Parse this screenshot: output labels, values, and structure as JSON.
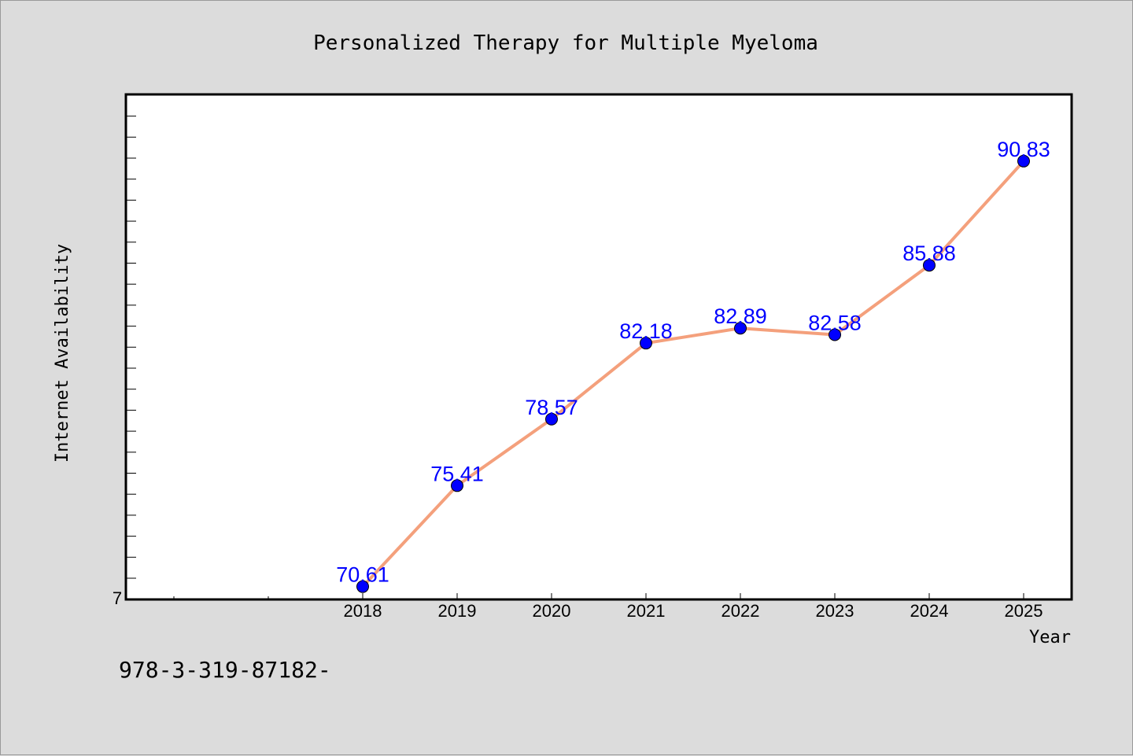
{
  "chart_data": {
    "type": "line",
    "title": "Personalized Therapy for Multiple Myeloma",
    "xlabel": "Year",
    "ylabel": "Internet Availability",
    "x": [
      "2018",
      "2019",
      "2020",
      "2021",
      "2022",
      "2023",
      "2024",
      "2025"
    ],
    "series": [
      {
        "values": [
          70.61,
          75.41,
          78.57,
          82.18,
          82.89,
          82.58,
          85.88,
          90.83
        ]
      }
    ],
    "data_labels": [
      "70.61",
      "75.41",
      "78.57",
      "82.18",
      "82.89",
      "82.58",
      "85.88",
      "90.83"
    ],
    "y_tick_label": "7",
    "ylim": [
      70,
      94
    ],
    "grid": false,
    "legend": "none",
    "line_color": "#f4a07c",
    "marker_color": "#0000ff",
    "label_color": "#0000ff",
    "plot_background": "#ffffff",
    "figure_background": "#dcdcdc"
  },
  "footnote": "978-3-319-87182-"
}
